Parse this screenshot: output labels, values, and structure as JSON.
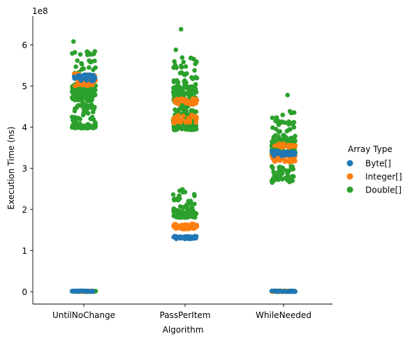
{
  "chart_data": {
    "type": "scatter",
    "plot_kind": "strip",
    "title": "",
    "xlabel": "Algorithm",
    "ylabel": "Execution Time (ns)",
    "y_multiplier_label": "1e8",
    "categories": [
      "UntilNoChange",
      "PassPerItem",
      "WhileNeeded"
    ],
    "ylim": [
      -0.3,
      6.7
    ],
    "yticks": [
      0,
      1,
      2,
      3,
      4,
      5,
      6
    ],
    "ytick_labels": [
      "0",
      "1",
      "2",
      "3",
      "4",
      "5",
      "6"
    ],
    "grid": false,
    "legend": {
      "title": "Array Type",
      "placement": "right"
    },
    "series": [
      {
        "name": "Byte[]",
        "color": "#1f77b4",
        "clusters": [
          {
            "category": "UntilNoChange",
            "y_min": 0.0,
            "y_max": 0.02,
            "count": 40
          },
          {
            "category": "UntilNoChange",
            "y_min": 5.12,
            "y_max": 5.28,
            "count": 30
          },
          {
            "category": "PassPerItem",
            "y_min": 1.28,
            "y_max": 1.35,
            "count": 55
          },
          {
            "category": "WhileNeeded",
            "y_min": 0.0,
            "y_max": 0.02,
            "count": 40
          },
          {
            "category": "WhileNeeded",
            "y_min": 3.3,
            "y_max": 3.42,
            "count": 45
          }
        ]
      },
      {
        "name": "Integer[]",
        "color": "#ff7f0e",
        "clusters": [
          {
            "category": "UntilNoChange",
            "y_min": 0.0,
            "y_max": 0.02,
            "count": 40
          },
          {
            "category": "UntilNoChange",
            "y_min": 5.0,
            "y_max": 5.3,
            "count": 45
          },
          {
            "category": "PassPerItem",
            "y_min": 1.52,
            "y_max": 1.65,
            "count": 60
          },
          {
            "category": "PassPerItem",
            "y_min": 4.1,
            "y_max": 4.3,
            "count": 30
          },
          {
            "category": "PassPerItem",
            "y_min": 4.55,
            "y_max": 4.7,
            "count": 30
          },
          {
            "category": "WhileNeeded",
            "y_min": 0.0,
            "y_max": 0.02,
            "count": 40
          },
          {
            "category": "WhileNeeded",
            "y_min": 3.15,
            "y_max": 3.3,
            "count": 40
          },
          {
            "category": "WhileNeeded",
            "y_min": 3.5,
            "y_max": 3.6,
            "count": 20
          }
        ]
      },
      {
        "name": "Double[]",
        "color": "#2ca02c",
        "clusters": [
          {
            "category": "UntilNoChange",
            "y_min": 0.0,
            "y_max": 0.02,
            "count": 60
          },
          {
            "category": "UntilNoChange",
            "y_min": 3.97,
            "y_max": 4.05,
            "count": 60
          },
          {
            "category": "UntilNoChange",
            "y_min": 4.05,
            "y_max": 4.65,
            "count": 50
          },
          {
            "category": "UntilNoChange",
            "y_min": 4.65,
            "y_max": 5.05,
            "count": 110
          },
          {
            "category": "UntilNoChange",
            "y_min": 5.05,
            "y_max": 5.85,
            "count": 35
          },
          {
            "category": "UntilNoChange",
            "y_min": 6.08,
            "y_max": 6.08,
            "count": 1
          },
          {
            "category": "PassPerItem",
            "y_min": 1.8,
            "y_max": 1.98,
            "count": 70
          },
          {
            "category": "PassPerItem",
            "y_min": 1.98,
            "y_max": 2.5,
            "count": 30
          },
          {
            "category": "PassPerItem",
            "y_min": 3.93,
            "y_max": 4.05,
            "count": 70
          },
          {
            "category": "PassPerItem",
            "y_min": 4.05,
            "y_max": 4.6,
            "count": 60
          },
          {
            "category": "PassPerItem",
            "y_min": 4.6,
            "y_max": 5.0,
            "count": 80
          },
          {
            "category": "PassPerItem",
            "y_min": 5.0,
            "y_max": 5.7,
            "count": 35
          },
          {
            "category": "PassPerItem",
            "y_min": 5.88,
            "y_max": 5.88,
            "count": 1
          },
          {
            "category": "PassPerItem",
            "y_min": 6.38,
            "y_max": 6.38,
            "count": 1
          },
          {
            "category": "WhileNeeded",
            "y_min": 0.0,
            "y_max": 0.02,
            "count": 60
          },
          {
            "category": "WhileNeeded",
            "y_min": 2.65,
            "y_max": 3.05,
            "count": 60
          },
          {
            "category": "WhileNeeded",
            "y_min": 3.3,
            "y_max": 3.75,
            "count": 90
          },
          {
            "category": "WhileNeeded",
            "y_min": 3.75,
            "y_max": 4.4,
            "count": 35
          },
          {
            "category": "WhileNeeded",
            "y_min": 4.78,
            "y_max": 4.78,
            "count": 1
          }
        ]
      }
    ]
  }
}
